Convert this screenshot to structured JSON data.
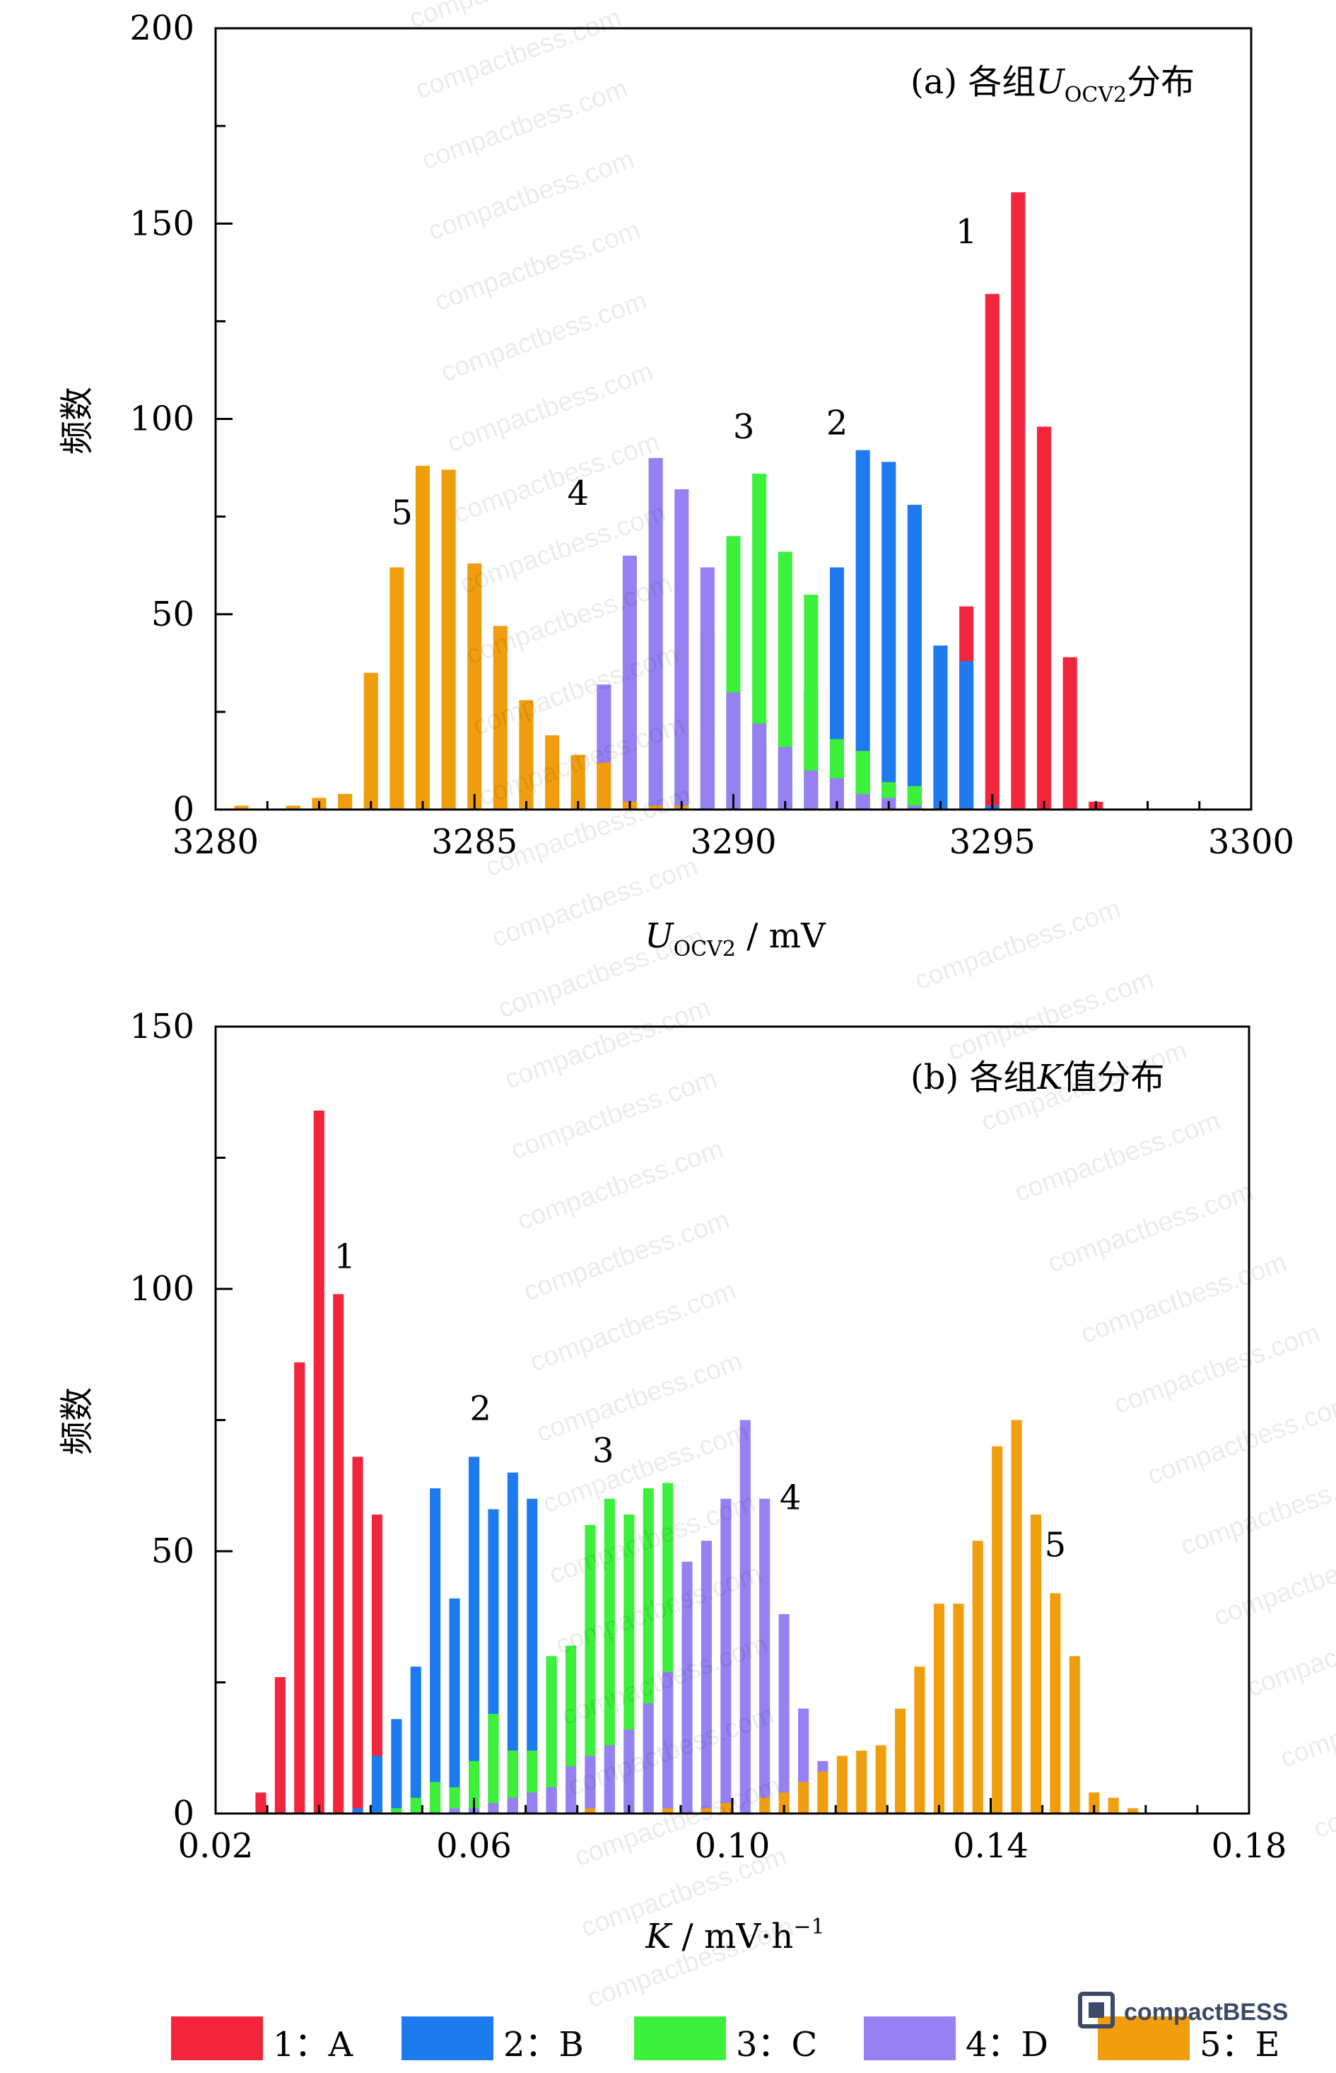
{
  "chart_data": [
    {
      "type": "bar",
      "title": "(a) 各组U_OCV2分布",
      "title_parts": {
        "prefix": "(a) 各组",
        "var": "U",
        "sub": "OCV2",
        "suffix": "分布"
      },
      "xlabel_parts": {
        "var": "U",
        "sub": "OCV2",
        "unit": " / mV"
      },
      "ylabel": "频数",
      "xlim": [
        3280,
        3300
      ],
      "ylim": [
        0,
        200
      ],
      "xticks": [
        "3280",
        "3285",
        "3290",
        "3295",
        "3300"
      ],
      "yticks": [
        "0",
        "50",
        "100",
        "150",
        "200"
      ],
      "bin_width": 0.5,
      "series": [
        {
          "name": "1：A",
          "label": "1",
          "label_at": [
            3294.5,
            145
          ],
          "x": [
            3294.0,
            3294.5,
            3295.0,
            3295.5,
            3296.0,
            3296.5,
            3297.0
          ],
          "values": [
            1,
            52,
            132,
            158,
            98,
            39,
            2
          ]
        },
        {
          "name": "2：B",
          "label": "2",
          "label_at": [
            3292.0,
            96
          ],
          "x": [
            3289.5,
            3290.0,
            3290.5,
            3291.0,
            3291.5,
            3292.0,
            3292.5,
            3293.0,
            3293.5,
            3294.0,
            3294.5,
            3295.0
          ],
          "values": [
            1,
            1,
            2,
            8,
            30,
            62,
            92,
            89,
            78,
            42,
            38,
            1
          ]
        },
        {
          "name": "3：C",
          "label": "3",
          "label_at": [
            3290.2,
            95
          ],
          "x": [
            3287.5,
            3288.0,
            3288.5,
            3289.0,
            3289.5,
            3290.0,
            3290.5,
            3291.0,
            3291.5,
            3292.0,
            3292.5,
            3293.0,
            3293.5
          ],
          "values": [
            1,
            2,
            12,
            20,
            46,
            70,
            86,
            66,
            55,
            18,
            15,
            7,
            6
          ]
        },
        {
          "name": "4：D",
          "label": "4",
          "label_at": [
            3287.0,
            78
          ],
          "x": [
            3286.5,
            3287.0,
            3287.5,
            3288.0,
            3288.5,
            3289.0,
            3289.5,
            3290.0,
            3290.5,
            3291.0,
            3291.5,
            3292.0,
            3292.5,
            3293.0,
            3293.5
          ],
          "values": [
            1,
            4,
            32,
            65,
            90,
            82,
            62,
            30,
            22,
            16,
            10,
            8,
            4,
            3,
            1
          ]
        },
        {
          "name": "5：E",
          "label": "5",
          "label_at": [
            3283.6,
            73
          ],
          "x": [
            3280.5,
            3281.5,
            3282.0,
            3282.5,
            3283.0,
            3283.5,
            3284.0,
            3284.5,
            3285.0,
            3285.5,
            3286.0,
            3286.5,
            3287.0,
            3287.5,
            3288.0,
            3288.5,
            3289.0
          ],
          "values": [
            1,
            1,
            3,
            4,
            35,
            62,
            88,
            87,
            63,
            47,
            28,
            19,
            14,
            12,
            2,
            1,
            1
          ]
        }
      ],
      "grid": false
    },
    {
      "type": "bar",
      "title": "(b) 各组K值分布",
      "title_parts": {
        "prefix": "(b) 各组",
        "var": "K",
        "sub": "",
        "suffix": "值分布"
      },
      "xlabel_parts": {
        "var": "K",
        "unit": " / mV·h",
        "sup": "−1"
      },
      "ylabel": "频数",
      "xlim": [
        0.02,
        0.18
      ],
      "ylim": [
        0,
        150
      ],
      "xticks": [
        "0.02",
        "0.06",
        "0.10",
        "0.14",
        "0.18"
      ],
      "yticks": [
        "0",
        "50",
        "100",
        "150"
      ],
      "bin_width": 0.003,
      "series": [
        {
          "name": "1：A",
          "label": "1",
          "label_at": [
            0.04,
            104
          ],
          "x": [
            0.027,
            0.03,
            0.033,
            0.036,
            0.039,
            0.042,
            0.045
          ],
          "values": [
            4,
            26,
            86,
            134,
            99,
            68,
            57
          ]
        },
        {
          "name": "2：B",
          "label": "2",
          "label_at": [
            0.061,
            75
          ],
          "x": [
            0.042,
            0.045,
            0.048,
            0.051,
            0.054,
            0.057,
            0.06,
            0.063,
            0.066,
            0.069,
            0.072,
            0.075
          ],
          "values": [
            1,
            11,
            18,
            28,
            62,
            41,
            68,
            58,
            65,
            60,
            29,
            1
          ]
        },
        {
          "name": "3：C",
          "label": "3",
          "label_at": [
            0.08,
            67
          ],
          "x": [
            0.048,
            0.051,
            0.054,
            0.057,
            0.06,
            0.063,
            0.066,
            0.069,
            0.072,
            0.075,
            0.078,
            0.081,
            0.084,
            0.087,
            0.09,
            0.093
          ],
          "values": [
            1,
            3,
            6,
            5,
            10,
            19,
            12,
            12,
            30,
            32,
            55,
            60,
            57,
            62,
            63,
            38
          ]
        },
        {
          "name": "4：D",
          "label": "4",
          "label_at": [
            0.109,
            58
          ],
          "x": [
            0.057,
            0.06,
            0.063,
            0.066,
            0.069,
            0.072,
            0.075,
            0.078,
            0.081,
            0.084,
            0.087,
            0.09,
            0.093,
            0.096,
            0.099,
            0.102,
            0.105,
            0.108,
            0.111,
            0.114
          ],
          "values": [
            1,
            1,
            2,
            3,
            4,
            5,
            9,
            11,
            13,
            16,
            21,
            27,
            48,
            52,
            60,
            75,
            60,
            38,
            20,
            10
          ]
        },
        {
          "name": "5：E",
          "label": "5",
          "label_at": [
            0.15,
            49
          ],
          "x": [
            0.078,
            0.09,
            0.096,
            0.099,
            0.105,
            0.108,
            0.111,
            0.114,
            0.117,
            0.12,
            0.123,
            0.126,
            0.129,
            0.132,
            0.135,
            0.138,
            0.141,
            0.144,
            0.147,
            0.15,
            0.153,
            0.156,
            0.159,
            0.162
          ],
          "values": [
            1,
            1,
            1,
            2,
            3,
            4,
            6,
            8,
            11,
            12,
            13,
            20,
            28,
            40,
            40,
            52,
            70,
            75,
            57,
            42,
            30,
            4,
            3,
            1
          ]
        }
      ],
      "grid": false
    }
  ],
  "legend": {
    "placement": "bottom",
    "items": [
      {
        "label": "1：A",
        "color": "#f2253d"
      },
      {
        "label": "2：B",
        "color": "#1e7bef"
      },
      {
        "label": "3：C",
        "color": "#3cf03c"
      },
      {
        "label": "4：D",
        "color": "#9680f2"
      },
      {
        "label": "5：E",
        "color": "#f09e0e"
      }
    ]
  },
  "colors": [
    "#f2253d",
    "#1e7bef",
    "#3cf03c",
    "#9680f2",
    "#f09e0e"
  ],
  "watermark": {
    "text": "compactbess.com",
    "logo_text": "compactBESS"
  }
}
